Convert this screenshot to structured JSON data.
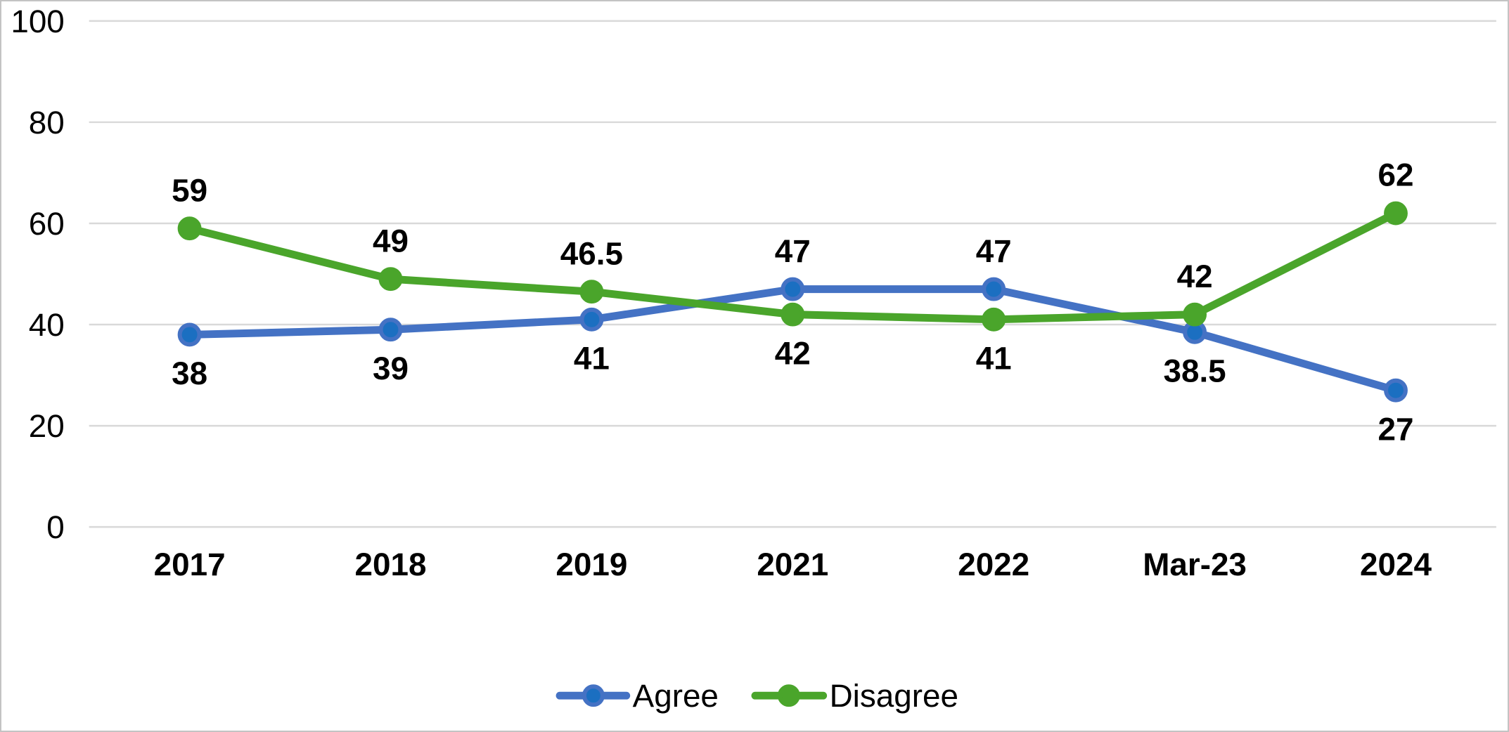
{
  "chart_data": {
    "type": "line",
    "categories": [
      "2017",
      "2018",
      "2019",
      "2021",
      "2022",
      "Mar-23",
      "2024"
    ],
    "series": [
      {
        "name": "Agree",
        "values": [
          38,
          39,
          41,
          47,
          47,
          38.5,
          27
        ],
        "line_color": "#4472C4",
        "marker_fill": "#1B6FC1",
        "marker_stroke": "#4472C4"
      },
      {
        "name": "Disagree",
        "values": [
          59,
          49,
          46.5,
          42,
          41,
          42,
          62
        ],
        "line_color": "#4AA52B",
        "marker_fill": "#4AA52B",
        "marker_stroke": "#4AA52B"
      }
    ],
    "yticks": [
      0,
      20,
      40,
      60,
      80,
      100
    ],
    "ylim": [
      0,
      100
    ],
    "grid": "horizontal",
    "gridline_color": "#D9D9D9",
    "data_labels": true,
    "legend_position": "bottom",
    "text_color": "#000000",
    "background_color": "#FFFFFF"
  }
}
